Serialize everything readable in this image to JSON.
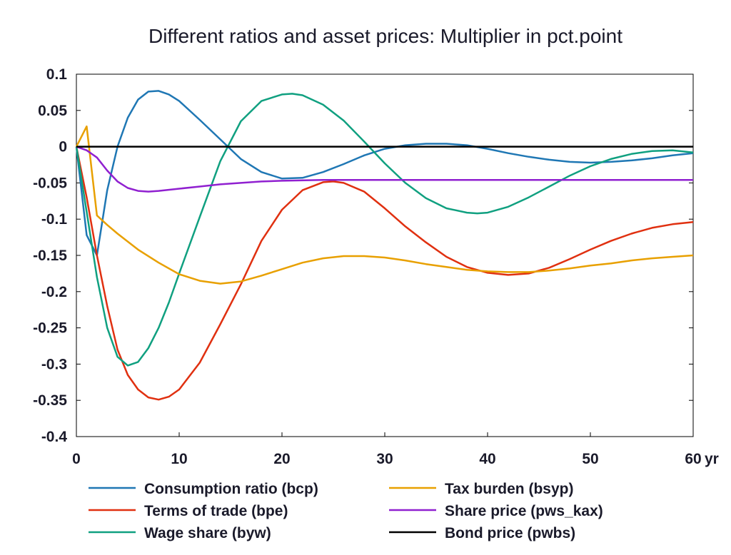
{
  "chart_data": {
    "type": "line",
    "title": "Different ratios and asset prices: Multiplier in pct.point",
    "xlabel": "",
    "ylabel": "",
    "x_unit_label": "yr",
    "xlim": [
      0,
      60
    ],
    "ylim": [
      -0.4,
      0.1
    ],
    "x_ticks": [
      0,
      10,
      20,
      30,
      40,
      50,
      60
    ],
    "x_tick_labels": [
      "0",
      "10",
      "20",
      "30",
      "40",
      "50",
      "60"
    ],
    "y_ticks": [
      0.1,
      0.05,
      0,
      -0.05,
      -0.1,
      -0.15,
      -0.2,
      -0.25,
      -0.3,
      -0.35,
      -0.4
    ],
    "y_tick_labels": [
      "0.1",
      "0.05",
      "0",
      "-0.05",
      "-0.1",
      "-0.15",
      "-0.2",
      "-0.25",
      "-0.3",
      "-0.35",
      "-0.4"
    ],
    "grid": false,
    "legend_position": "bottom",
    "series": [
      {
        "name": "Consumption ratio (bcp)",
        "color": "#1f77b4",
        "x": [
          0,
          1,
          2,
          3,
          4,
          5,
          6,
          7,
          8,
          9,
          10,
          12,
          14,
          16,
          18,
          20,
          22,
          24,
          26,
          28,
          30,
          32,
          34,
          36,
          38,
          40,
          42,
          44,
          46,
          48,
          50,
          52,
          54,
          56,
          58,
          60
        ],
        "y": [
          0,
          -0.122,
          -0.15,
          -0.06,
          0.0,
          0.04,
          0.065,
          0.076,
          0.077,
          0.072,
          0.063,
          0.037,
          0.01,
          -0.017,
          -0.035,
          -0.044,
          -0.043,
          -0.035,
          -0.024,
          -0.012,
          -0.003,
          0.002,
          0.004,
          0.004,
          0.002,
          -0.003,
          -0.009,
          -0.014,
          -0.018,
          -0.021,
          -0.022,
          -0.021,
          -0.019,
          -0.016,
          -0.012,
          -0.009
        ]
      },
      {
        "name": "Terms of trade (bpe)",
        "color": "#e03010",
        "x": [
          0,
          1,
          2,
          3,
          4,
          5,
          6,
          7,
          8,
          9,
          10,
          12,
          14,
          16,
          18,
          20,
          22,
          24,
          25,
          26,
          28,
          30,
          32,
          34,
          36,
          38,
          40,
          42,
          44,
          46,
          48,
          50,
          52,
          54,
          56,
          58,
          60
        ],
        "y": [
          0,
          -0.07,
          -0.15,
          -0.22,
          -0.28,
          -0.315,
          -0.335,
          -0.346,
          -0.349,
          -0.345,
          -0.335,
          -0.298,
          -0.245,
          -0.19,
          -0.13,
          -0.087,
          -0.06,
          -0.049,
          -0.048,
          -0.05,
          -0.062,
          -0.085,
          -0.11,
          -0.132,
          -0.152,
          -0.166,
          -0.174,
          -0.177,
          -0.175,
          -0.167,
          -0.155,
          -0.142,
          -0.13,
          -0.12,
          -0.112,
          -0.107,
          -0.104
        ]
      },
      {
        "name": "Wage share (byw)",
        "color": "#10a080",
        "x": [
          0,
          1,
          2,
          3,
          4,
          5,
          6,
          7,
          8,
          9,
          10,
          12,
          14,
          16,
          18,
          20,
          21,
          22,
          24,
          26,
          28,
          30,
          32,
          34,
          36,
          38,
          39,
          40,
          42,
          44,
          46,
          48,
          50,
          52,
          54,
          56,
          58,
          60
        ],
        "y": [
          0,
          -0.09,
          -0.18,
          -0.25,
          -0.29,
          -0.302,
          -0.297,
          -0.278,
          -0.25,
          -0.215,
          -0.175,
          -0.097,
          -0.02,
          0.035,
          0.063,
          0.072,
          0.073,
          0.071,
          0.058,
          0.036,
          0.007,
          -0.023,
          -0.05,
          -0.071,
          -0.085,
          -0.091,
          -0.092,
          -0.091,
          -0.083,
          -0.07,
          -0.055,
          -0.04,
          -0.027,
          -0.017,
          -0.01,
          -0.006,
          -0.005,
          -0.008
        ]
      },
      {
        "name": "Tax burden (bsyp)",
        "color": "#e8a000",
        "x": [
          0,
          1,
          2,
          3,
          4,
          6,
          8,
          10,
          12,
          14,
          16,
          18,
          20,
          22,
          24,
          26,
          28,
          30,
          32,
          34,
          36,
          38,
          40,
          42,
          44,
          46,
          48,
          50,
          52,
          54,
          56,
          58,
          60
        ],
        "y": [
          0,
          0.028,
          -0.095,
          -0.108,
          -0.12,
          -0.142,
          -0.16,
          -0.176,
          -0.185,
          -0.189,
          -0.186,
          -0.178,
          -0.169,
          -0.16,
          -0.154,
          -0.151,
          -0.151,
          -0.153,
          -0.157,
          -0.162,
          -0.166,
          -0.17,
          -0.172,
          -0.173,
          -0.173,
          -0.171,
          -0.168,
          -0.164,
          -0.161,
          -0.157,
          -0.154,
          -0.152,
          -0.15
        ]
      },
      {
        "name": "Share price (pws_kax)",
        "color": "#9020d0",
        "x": [
          0,
          1,
          2,
          3,
          4,
          5,
          6,
          7,
          8,
          10,
          12,
          14,
          16,
          18,
          20,
          24,
          28,
          32,
          36,
          40,
          44,
          48,
          52,
          56,
          60
        ],
        "y": [
          0,
          -0.005,
          -0.015,
          -0.033,
          -0.048,
          -0.057,
          -0.061,
          -0.062,
          -0.061,
          -0.058,
          -0.055,
          -0.052,
          -0.05,
          -0.048,
          -0.047,
          -0.046,
          -0.046,
          -0.046,
          -0.046,
          -0.046,
          -0.046,
          -0.046,
          -0.046,
          -0.046,
          -0.046
        ]
      },
      {
        "name": "Bond price (pwbs)",
        "color": "#000000",
        "x": [
          0,
          60
        ],
        "y": [
          0,
          0
        ]
      }
    ]
  },
  "legend_layout": [
    {
      "series": 0,
      "col": 0,
      "row": 0
    },
    {
      "series": 1,
      "col": 0,
      "row": 1
    },
    {
      "series": 2,
      "col": 0,
      "row": 2
    },
    {
      "series": 3,
      "col": 1,
      "row": 0
    },
    {
      "series": 4,
      "col": 1,
      "row": 1
    },
    {
      "series": 5,
      "col": 1,
      "row": 2
    }
  ]
}
